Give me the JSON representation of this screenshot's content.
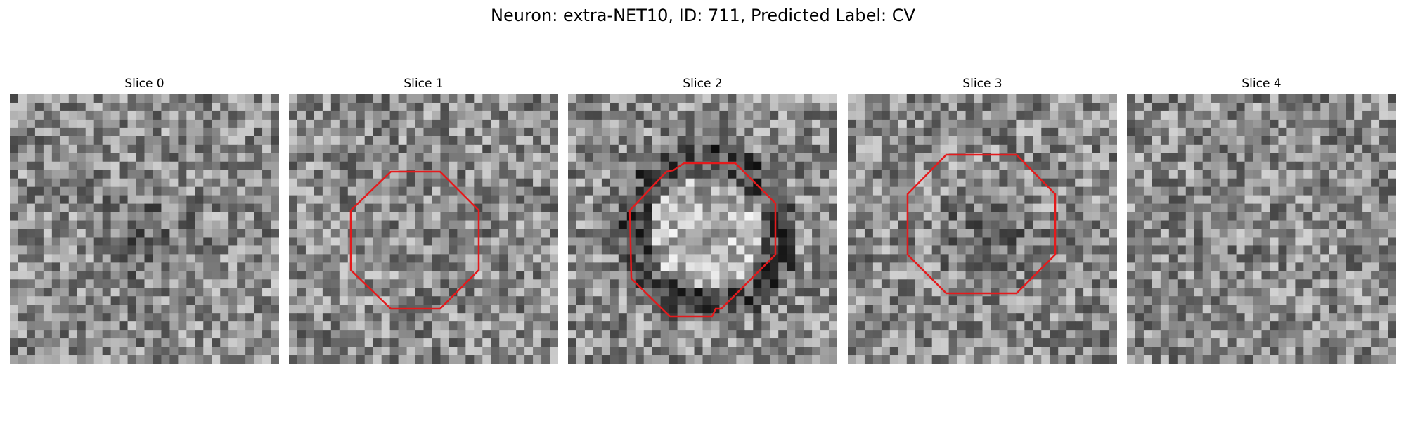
{
  "figure": {
    "title": "Neuron: extra-NET10, ID: 711, Predicted Label: CV",
    "colormap": "gray",
    "contour_color": "#e41a1c",
    "panels": [
      {
        "title": "Slice 0",
        "contour": false,
        "seed": 11,
        "center_dark": true,
        "ring_dark": false
      },
      {
        "title": "Slice 1",
        "contour": true,
        "seed": 23,
        "center_dark": false,
        "ring_dark": false
      },
      {
        "title": "Slice 2",
        "contour": true,
        "seed": 37,
        "center_dark": false,
        "ring_dark": true
      },
      {
        "title": "Slice 3",
        "contour": true,
        "seed": 53,
        "center_dark": true,
        "ring_dark": false
      },
      {
        "title": "Slice 4",
        "contour": false,
        "seed": 71,
        "center_dark": false,
        "ring_dark": false
      }
    ]
  }
}
